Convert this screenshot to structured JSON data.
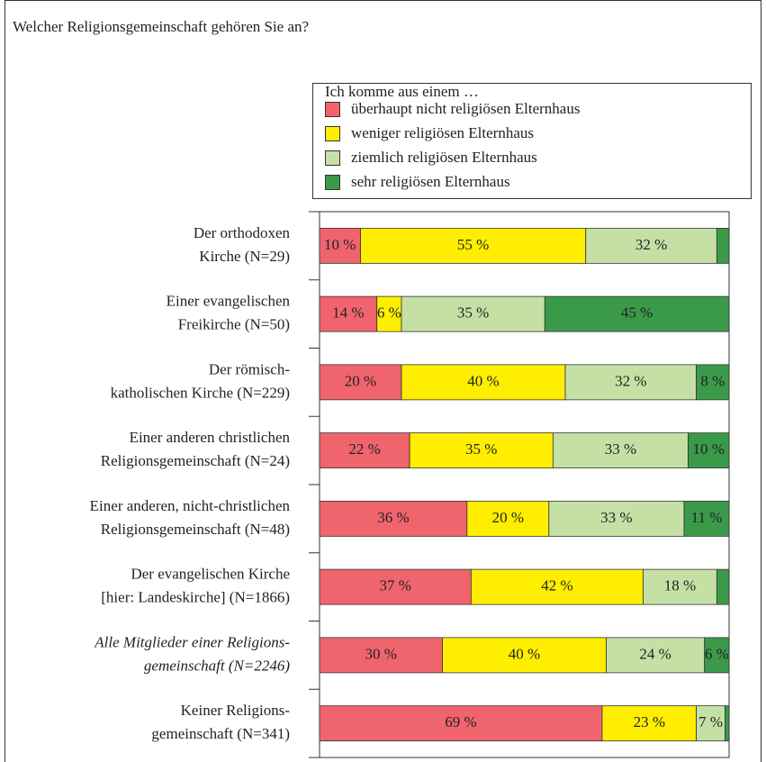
{
  "chart_data": {
    "type": "stacked-barh",
    "title": "Welcher Religionsgemeinschaft gehören Sie an?",
    "legend_title": "Ich komme aus einem …",
    "legend": "top-right",
    "categories": [
      [
        "Der orthodoxen",
        "Kirche (N=29)"
      ],
      [
        "Einer evangelischen",
        "Freikirche (N=50)"
      ],
      [
        "Der römisch-",
        "katholischen Kirche (N=229)"
      ],
      [
        "Einer anderen christlichen",
        "Religionsgemeinschaft (N=24)"
      ],
      [
        "Einer anderen, nicht-christlichen",
        "Religionsgemeinschaft (N=48)"
      ],
      [
        "Der evangelischen Kirche",
        "[hier: Landeskirche] (N=1866)"
      ],
      [
        "Alle Mitglieder einer Religions-",
        "gemeinschaft (N=2246)"
      ],
      [
        "Keiner Religions-",
        "gemeinschaft (N=341)"
      ]
    ],
    "italic_categories": [
      6
    ],
    "xlim": [
      0,
      100
    ],
    "series": [
      {
        "name": "überhaupt nicht religiösen Elternhaus",
        "color": "#f0646e",
        "label_color": "#333333",
        "values": [
          10,
          14,
          20,
          22,
          36,
          37,
          30,
          69
        ],
        "value_labels": [
          "10 %",
          "14 %",
          "20 %",
          "22 %",
          "36 %",
          "37 %",
          "30 %",
          "69 %"
        ]
      },
      {
        "name": "weniger religiösen Elternhaus",
        "color": "#ffee00",
        "label_color": "#333333",
        "values": [
          55,
          6,
          40,
          35,
          20,
          42,
          40,
          23
        ],
        "value_labels": [
          "55 %",
          "6 %",
          "40 %",
          "35 %",
          "20 %",
          "42 %",
          "40 %",
          "23 %"
        ]
      },
      {
        "name": "ziemlich religiösen Elternhaus",
        "color": "#c5e0a5",
        "label_color": "#333333",
        "values": [
          32,
          35,
          32,
          33,
          33,
          18,
          24,
          7
        ],
        "value_labels": [
          "32 %",
          "35 %",
          "32 %",
          "33 %",
          "33 %",
          "18 %",
          "24 %",
          "7 %"
        ]
      },
      {
        "name": "sehr religiösen Elternhaus",
        "color": "#3a9a4a",
        "label_color": "#ffffff",
        "values": [
          3,
          45,
          8,
          10,
          11,
          3,
          6,
          1
        ],
        "value_labels": [
          null,
          "45 %",
          "8 %",
          "10 %",
          "11 %",
          null,
          "6 %",
          null
        ]
      }
    ]
  }
}
